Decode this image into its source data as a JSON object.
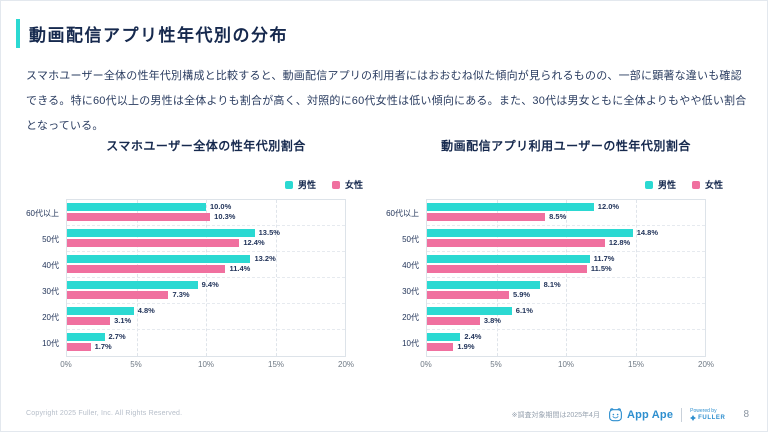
{
  "slide": {
    "title": "動画配信アプリ性年代別の分布",
    "body": "スマホユーザー全体の性年代別構成と比較すると、動画配信アプリの利用者にはおおむね似た傾向が見られるものの、一部に顕著な違いも確認できる。特に60代以上の男性は全体よりも割合が高く、対照的に60代女性は低い傾向にある。また、30代は男女ともに全体よりもやや低い割合となっている。"
  },
  "legend": {
    "male": "男性",
    "female": "女性"
  },
  "colors": {
    "male": "#2bd9d2",
    "female": "#f0709f",
    "navy": "#16294e",
    "grid": "#dde3e9",
    "axis_text": "#6e7884",
    "appape_blue": "#2e8fcf"
  },
  "chart_data": [
    {
      "type": "bar",
      "orientation": "horizontal",
      "title": "スマホユーザー全体の性年代別割合",
      "categories": [
        "60代以上",
        "50代",
        "40代",
        "30代",
        "20代",
        "10代"
      ],
      "series": [
        {
          "name": "男性",
          "color_key": "male",
          "values": [
            10.0,
            13.5,
            13.2,
            9.4,
            4.8,
            2.7
          ]
        },
        {
          "name": "女性",
          "color_key": "female",
          "values": [
            10.3,
            12.4,
            11.4,
            7.3,
            3.1,
            1.7
          ]
        }
      ],
      "xlim": [
        0,
        20
      ],
      "xticks": [
        "0%",
        "5%",
        "10%",
        "15%",
        "20%"
      ],
      "value_suffix": "%",
      "grid": "dashed-vertical",
      "legend_position": "top-right"
    },
    {
      "type": "bar",
      "orientation": "horizontal",
      "title": "動画配信アプリ利用ユーザーの性年代別割合",
      "categories": [
        "60代以上",
        "50代",
        "40代",
        "30代",
        "20代",
        "10代"
      ],
      "series": [
        {
          "name": "男性",
          "color_key": "male",
          "values": [
            12.0,
            14.8,
            11.7,
            8.1,
            6.1,
            2.4
          ]
        },
        {
          "name": "女性",
          "color_key": "female",
          "values": [
            8.5,
            12.8,
            11.5,
            5.9,
            3.8,
            1.9
          ]
        }
      ],
      "xlim": [
        0,
        20
      ],
      "xticks": [
        "0%",
        "5%",
        "10%",
        "15%",
        "20%"
      ],
      "value_suffix": "%",
      "grid": "dashed-vertical",
      "legend_position": "top-right"
    }
  ],
  "footer": {
    "copyright": "Copyright 2025 Fuller, Inc. All Rights Reserved.",
    "note": "※調査対象期間は2025年4月",
    "appape_label": "App Ape",
    "powered_by": "Powered by",
    "fuller": "FULLER",
    "page_number": "8"
  }
}
